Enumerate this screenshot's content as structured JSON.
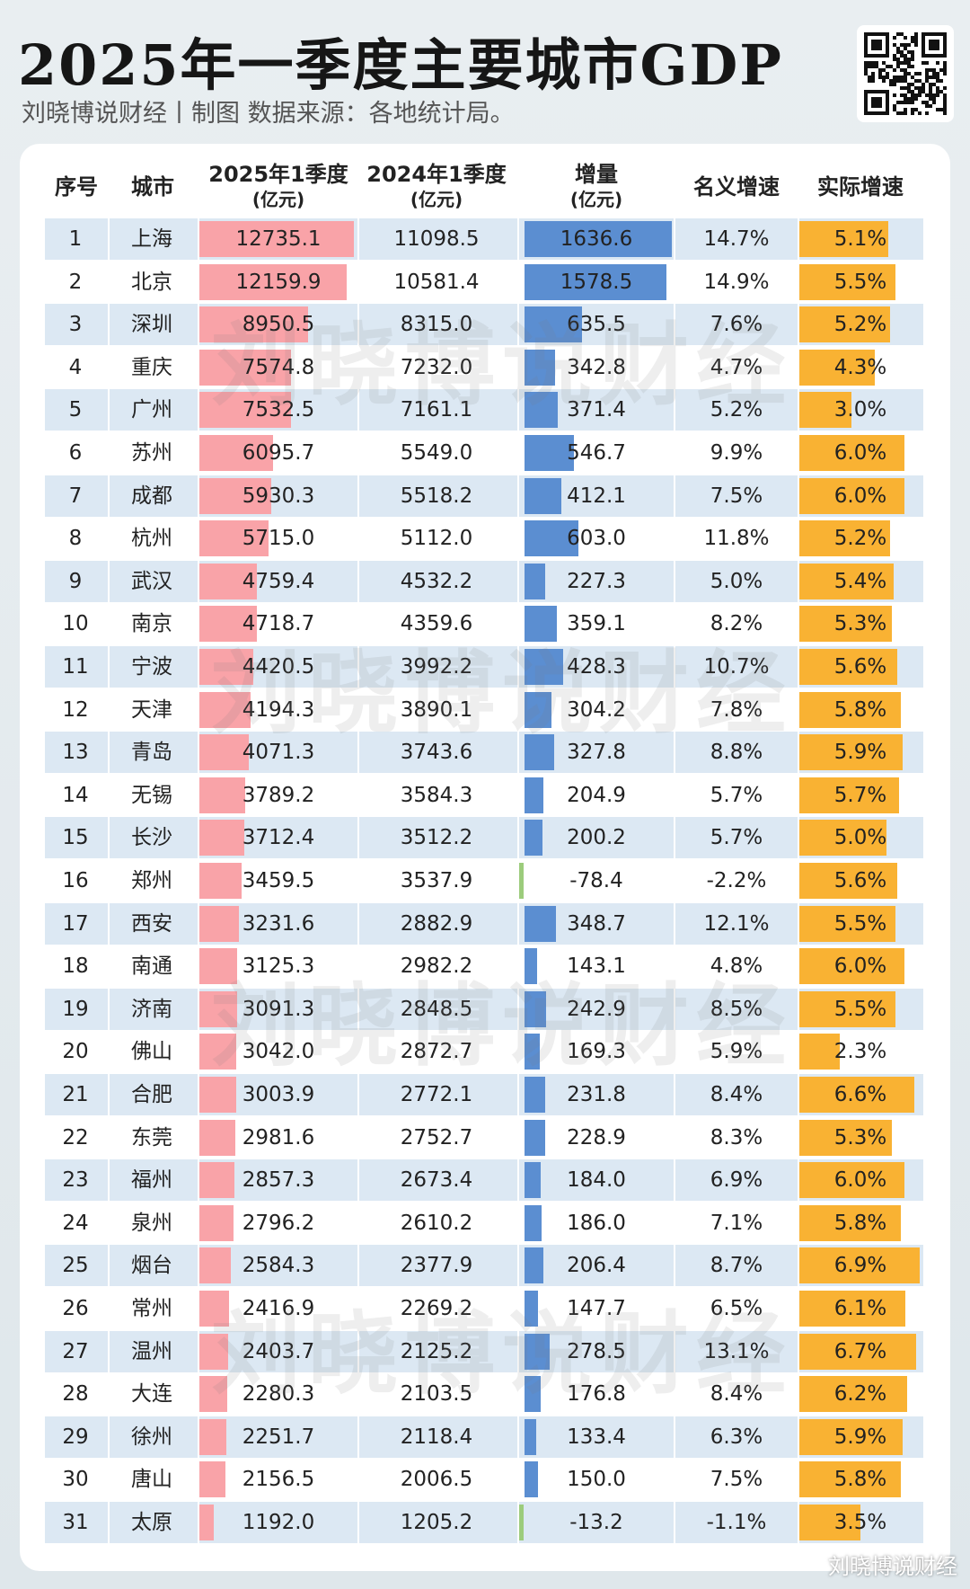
{
  "header": {
    "title": "2025年一季度主要城市GDP",
    "subtitle": "刘晓博说财经丨制图    数据来源：各地统计局。"
  },
  "watermark": "刘晓博说财经",
  "footer": "刘晓博说财经",
  "colors": {
    "gdp_bar": "#f9a3a8",
    "increment_bar": "#5b8ed1",
    "negative_bar": "#9ccc7c",
    "real_growth_bar": "#f9b233",
    "row_alt": "#dce8f3"
  },
  "chart_data": {
    "type": "table",
    "columns": [
      {
        "label": "序号",
        "unit": ""
      },
      {
        "label": "城市",
        "unit": ""
      },
      {
        "label": "2025年1季度",
        "unit": "(亿元)"
      },
      {
        "label": "2024年1季度",
        "unit": "(亿元)"
      },
      {
        "label": "增量",
        "unit": "(亿元)"
      },
      {
        "label": "名义增速",
        "unit": ""
      },
      {
        "label": "实际增速",
        "unit": ""
      }
    ],
    "rows": [
      {
        "rank": "1",
        "city": "上海",
        "q1_2025": "12735.1",
        "q1_2024": "11098.5",
        "increment": "1636.6",
        "nominal": "14.7%",
        "real": "5.1%"
      },
      {
        "rank": "2",
        "city": "北京",
        "q1_2025": "12159.9",
        "q1_2024": "10581.4",
        "increment": "1578.5",
        "nominal": "14.9%",
        "real": "5.5%"
      },
      {
        "rank": "3",
        "city": "深圳",
        "q1_2025": "8950.5",
        "q1_2024": "8315.0",
        "increment": "635.5",
        "nominal": "7.6%",
        "real": "5.2%"
      },
      {
        "rank": "4",
        "city": "重庆",
        "q1_2025": "7574.8",
        "q1_2024": "7232.0",
        "increment": "342.8",
        "nominal": "4.7%",
        "real": "4.3%"
      },
      {
        "rank": "5",
        "city": "广州",
        "q1_2025": "7532.5",
        "q1_2024": "7161.1",
        "increment": "371.4",
        "nominal": "5.2%",
        "real": "3.0%"
      },
      {
        "rank": "6",
        "city": "苏州",
        "q1_2025": "6095.7",
        "q1_2024": "5549.0",
        "increment": "546.7",
        "nominal": "9.9%",
        "real": "6.0%"
      },
      {
        "rank": "7",
        "city": "成都",
        "q1_2025": "5930.3",
        "q1_2024": "5518.2",
        "increment": "412.1",
        "nominal": "7.5%",
        "real": "6.0%"
      },
      {
        "rank": "8",
        "city": "杭州",
        "q1_2025": "5715.0",
        "q1_2024": "5112.0",
        "increment": "603.0",
        "nominal": "11.8%",
        "real": "5.2%"
      },
      {
        "rank": "9",
        "city": "武汉",
        "q1_2025": "4759.4",
        "q1_2024": "4532.2",
        "increment": "227.3",
        "nominal": "5.0%",
        "real": "5.4%"
      },
      {
        "rank": "10",
        "city": "南京",
        "q1_2025": "4718.7",
        "q1_2024": "4359.6",
        "increment": "359.1",
        "nominal": "8.2%",
        "real": "5.3%"
      },
      {
        "rank": "11",
        "city": "宁波",
        "q1_2025": "4420.5",
        "q1_2024": "3992.2",
        "increment": "428.3",
        "nominal": "10.7%",
        "real": "5.6%"
      },
      {
        "rank": "12",
        "city": "天津",
        "q1_2025": "4194.3",
        "q1_2024": "3890.1",
        "increment": "304.2",
        "nominal": "7.8%",
        "real": "5.8%"
      },
      {
        "rank": "13",
        "city": "青岛",
        "q1_2025": "4071.3",
        "q1_2024": "3743.6",
        "increment": "327.8",
        "nominal": "8.8%",
        "real": "5.9%"
      },
      {
        "rank": "14",
        "city": "无锡",
        "q1_2025": "3789.2",
        "q1_2024": "3584.3",
        "increment": "204.9",
        "nominal": "5.7%",
        "real": "5.7%"
      },
      {
        "rank": "15",
        "city": "长沙",
        "q1_2025": "3712.4",
        "q1_2024": "3512.2",
        "increment": "200.2",
        "nominal": "5.7%",
        "real": "5.0%"
      },
      {
        "rank": "16",
        "city": "郑州",
        "q1_2025": "3459.5",
        "q1_2024": "3537.9",
        "increment": "-78.4",
        "nominal": "-2.2%",
        "real": "5.6%"
      },
      {
        "rank": "17",
        "city": "西安",
        "q1_2025": "3231.6",
        "q1_2024": "2882.9",
        "increment": "348.7",
        "nominal": "12.1%",
        "real": "5.5%"
      },
      {
        "rank": "18",
        "city": "南通",
        "q1_2025": "3125.3",
        "q1_2024": "2982.2",
        "increment": "143.1",
        "nominal": "4.8%",
        "real": "6.0%"
      },
      {
        "rank": "19",
        "city": "济南",
        "q1_2025": "3091.3",
        "q1_2024": "2848.5",
        "increment": "242.9",
        "nominal": "8.5%",
        "real": "5.5%"
      },
      {
        "rank": "20",
        "city": "佛山",
        "q1_2025": "3042.0",
        "q1_2024": "2872.7",
        "increment": "169.3",
        "nominal": "5.9%",
        "real": "2.3%"
      },
      {
        "rank": "21",
        "city": "合肥",
        "q1_2025": "3003.9",
        "q1_2024": "2772.1",
        "increment": "231.8",
        "nominal": "8.4%",
        "real": "6.6%"
      },
      {
        "rank": "22",
        "city": "东莞",
        "q1_2025": "2981.6",
        "q1_2024": "2752.7",
        "increment": "228.9",
        "nominal": "8.3%",
        "real": "5.3%"
      },
      {
        "rank": "23",
        "city": "福州",
        "q1_2025": "2857.3",
        "q1_2024": "2673.4",
        "increment": "184.0",
        "nominal": "6.9%",
        "real": "6.0%"
      },
      {
        "rank": "24",
        "city": "泉州",
        "q1_2025": "2796.2",
        "q1_2024": "2610.2",
        "increment": "186.0",
        "nominal": "7.1%",
        "real": "5.8%"
      },
      {
        "rank": "25",
        "city": "烟台",
        "q1_2025": "2584.3",
        "q1_2024": "2377.9",
        "increment": "206.4",
        "nominal": "8.7%",
        "real": "6.9%"
      },
      {
        "rank": "26",
        "city": "常州",
        "q1_2025": "2416.9",
        "q1_2024": "2269.2",
        "increment": "147.7",
        "nominal": "6.5%",
        "real": "6.1%"
      },
      {
        "rank": "27",
        "city": "温州",
        "q1_2025": "2403.7",
        "q1_2024": "2125.2",
        "increment": "278.5",
        "nominal": "13.1%",
        "real": "6.7%"
      },
      {
        "rank": "28",
        "city": "大连",
        "q1_2025": "2280.3",
        "q1_2024": "2103.5",
        "increment": "176.8",
        "nominal": "8.4%",
        "real": "6.2%"
      },
      {
        "rank": "29",
        "city": "徐州",
        "q1_2025": "2251.7",
        "q1_2024": "2118.4",
        "increment": "133.4",
        "nominal": "6.3%",
        "real": "5.9%"
      },
      {
        "rank": "30",
        "city": "唐山",
        "q1_2025": "2156.5",
        "q1_2024": "2006.5",
        "increment": "150.0",
        "nominal": "7.5%",
        "real": "5.8%"
      },
      {
        "rank": "31",
        "city": "太原",
        "q1_2025": "1192.0",
        "q1_2024": "1205.2",
        "increment": "-13.2",
        "nominal": "-1.1%",
        "real": "3.5%"
      }
    ]
  }
}
